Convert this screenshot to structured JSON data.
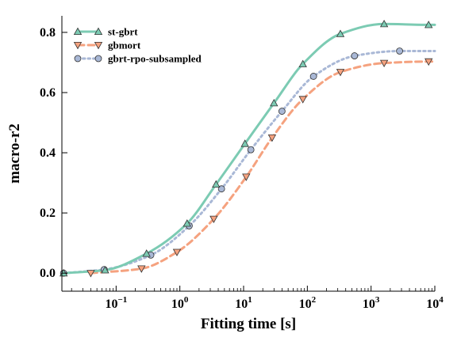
{
  "chart_data": {
    "type": "line",
    "xlabel": "Fitting time [s]",
    "ylabel": "macro-r2",
    "xscale": "log",
    "xlim": [
      0.0141,
      10000
    ],
    "ylim": [
      -0.06,
      0.855
    ],
    "grid": false,
    "legend_position": "top-left",
    "xticks": [
      {
        "value": 0.1,
        "base": "10",
        "exp": "−1"
      },
      {
        "value": 1,
        "base": "10",
        "exp": "0"
      },
      {
        "value": 10,
        "base": "10",
        "exp": "1"
      },
      {
        "value": 100,
        "base": "10",
        "exp": "2"
      },
      {
        "value": 1000,
        "base": "10",
        "exp": "3"
      },
      {
        "value": 10000,
        "base": "10",
        "exp": "4"
      }
    ],
    "yticks": [
      {
        "value": 0.0,
        "label": "0.0"
      },
      {
        "value": 0.2,
        "label": "0.2"
      },
      {
        "value": 0.4,
        "label": "0.4"
      },
      {
        "value": 0.6,
        "label": "0.6"
      },
      {
        "value": 0.8,
        "label": "0.8"
      }
    ],
    "series": [
      {
        "name": "st-gbrt",
        "color": "#7ccbb3",
        "line_style": "solid",
        "marker": "triangle-up",
        "x": [
          0.015,
          0.067,
          0.3,
          1.3,
          3.7,
          10.5,
          30,
          85,
          330,
          1600,
          8000
        ],
        "y": [
          0.0,
          0.01,
          0.065,
          0.165,
          0.295,
          0.43,
          0.565,
          0.695,
          0.795,
          0.828,
          0.825
        ]
      },
      {
        "name": "gbmort",
        "color": "#f5a27f",
        "line_style": "dashed",
        "marker": "triangle-down",
        "x": [
          0.04,
          0.25,
          0.9,
          3.4,
          11,
          28,
          85,
          330,
          1600,
          8000
        ],
        "y": [
          0.0,
          0.015,
          0.07,
          0.18,
          0.32,
          0.45,
          0.578,
          0.668,
          0.698,
          0.703
        ]
      },
      {
        "name": "gbrt-rpo-subsampled",
        "color": "#a9b8d6",
        "line_style": "dotted",
        "marker": "circle",
        "x": [
          0.015,
          0.065,
          0.35,
          1.4,
          4.5,
          13,
          40,
          125,
          550,
          2800
        ],
        "y": [
          0.0,
          0.012,
          0.06,
          0.157,
          0.28,
          0.41,
          0.538,
          0.654,
          0.722,
          0.738
        ]
      }
    ]
  }
}
